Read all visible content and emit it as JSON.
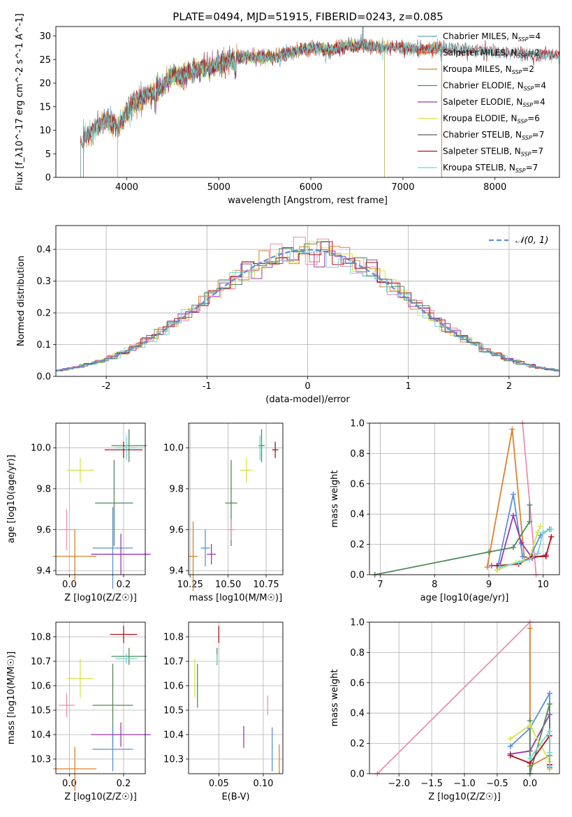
{
  "figure": {
    "title": "PLATE=0494, MJD=51915, FIBERID=0243, z=0.085"
  },
  "chart_data": [
    {
      "type": "line",
      "panel": "spectrum",
      "xlabel": "wavelength [Angstrom, rest frame]",
      "ylabel": "Flux [f_λ10^-17 erg cm^-2 s^-1 A^-1]",
      "xlim": [
        3230,
        8700
      ],
      "ylim": [
        0,
        32
      ],
      "xticks": [
        4000,
        5000,
        6000,
        7000,
        8000
      ],
      "yticks": [
        0,
        5,
        10,
        15,
        20,
        25,
        30
      ],
      "grid": false,
      "legend": "top-right",
      "series": [
        {
          "name": "Chabrier MILES, N_SSP=4",
          "color": "#5fa2c8",
          "range": [
            3530,
            7420
          ]
        },
        {
          "name": "Salpeter MILES, N_SSP=2",
          "color": "#e05a3e",
          "range": [
            3530,
            7420
          ]
        },
        {
          "name": "Kroupa MILES, N_SSP=2",
          "color": "#d9822b",
          "range": [
            3530,
            7420
          ]
        },
        {
          "name": "Chabrier ELODIE, N_SSP=4",
          "color": "#4e8a5a",
          "range": [
            3900,
            6800
          ]
        },
        {
          "name": "Salpeter ELODIE, N_SSP=4",
          "color": "#9a37b5",
          "range": [
            3900,
            6800
          ]
        },
        {
          "name": "Kroupa ELODIE, N_SSP=6",
          "color": "#d6e34a",
          "range": [
            3900,
            6800
          ]
        },
        {
          "name": "Chabrier STELIB, N_SSP=7",
          "color": "#5a5a5a",
          "range": [
            3500,
            8700
          ]
        },
        {
          "name": "Salpeter STELIB, N_SSP=7",
          "color": "#b0101a",
          "range": [
            3500,
            8700
          ]
        },
        {
          "name": "Kroupa STELIB, N_SSP=7",
          "color": "#6fd6d6",
          "range": [
            3500,
            8700
          ]
        }
      ],
      "shape": {
        "x": [
          3500,
          3600,
          3700,
          3800,
          3900,
          4000,
          4100,
          4200,
          4300,
          4400,
          4500,
          4600,
          4700,
          4800,
          4900,
          5000,
          5200,
          5400,
          5600,
          5800,
          6000,
          6200,
          6400,
          6600,
          6800,
          7000,
          7200,
          7400,
          7600,
          7800,
          8000,
          8200,
          8400,
          8700
        ],
        "y": [
          7,
          9.5,
          11,
          12,
          10.5,
          14,
          16,
          17,
          18.5,
          19.5,
          21.5,
          21,
          22.5,
          23,
          23.5,
          24,
          25.5,
          25.5,
          25.5,
          26.5,
          27.5,
          27,
          28,
          28,
          27.5,
          27.5,
          27,
          27.5,
          27,
          27,
          26.5,
          26.5,
          26,
          26
        ]
      }
    },
    {
      "type": "step",
      "panel": "residual-histogram",
      "xlabel": "(data-model)/error",
      "ylabel": "Normed distribution",
      "xlim": [
        -2.5,
        2.5
      ],
      "ylim": [
        0,
        0.475
      ],
      "xticks": [
        -2,
        -1,
        0,
        1,
        2
      ],
      "xtick_labels": [
        "−2",
        "−1",
        "0",
        "1",
        "2"
      ],
      "yticks": [
        0.0,
        0.1,
        0.2,
        0.3,
        0.4
      ],
      "yticklabels": [
        "0.0",
        "0.1",
        "0.2",
        "0.3",
        "0.4"
      ],
      "grid": true,
      "legend": "top-right",
      "reference_curve": {
        "name": "𝒩(0, 1)",
        "color": "#5b8fd6"
      },
      "series_colors": [
        "#d9822b",
        "#9a37b5",
        "#d6e34a",
        "#b0101a",
        "#e98fb5",
        "#6fd6d6",
        "#4e8a5a"
      ]
    },
    {
      "type": "scatter",
      "panel": "age-vs-Z",
      "xlabel": "Z [log10(Z/Z☉)]",
      "ylabel": "age  [log10(age/yr)]",
      "xlim": [
        -0.05,
        0.28
      ],
      "ylim": [
        9.38,
        10.12
      ],
      "xticks": [
        0.0,
        0.2
      ],
      "xticklabels": [
        "0.0",
        "0.2"
      ],
      "yticks": [
        9.4,
        9.6,
        9.8,
        10.0
      ],
      "yticklabels": [
        "9.4",
        "9.6",
        "9.8",
        "10.0"
      ],
      "grid": true,
      "points": [
        {
          "x": 0.22,
          "y": 10.01,
          "xerr": 0.065,
          "yerr": 0.08,
          "color": "#4e8a5a"
        },
        {
          "x": 0.2,
          "y": 9.99,
          "xerr": 0.07,
          "yerr": 0.04,
          "color": "#b0101a"
        },
        {
          "x": 0.21,
          "y": 10.0,
          "xerr": 0.04,
          "yerr": 0.06,
          "color": "#6fd6d6"
        },
        {
          "x": 0.04,
          "y": 9.89,
          "xerr": 0.05,
          "yerr": 0.06,
          "color": "#d6e34a"
        },
        {
          "x": 0.165,
          "y": 9.73,
          "xerr": 0.07,
          "yerr": 0.21,
          "color": "#4e8a5a"
        },
        {
          "x": -0.01,
          "y": 9.6,
          "xerr": 0.03,
          "yerr": 0.1,
          "color": "#e98fb5"
        },
        {
          "x": 0.16,
          "y": 9.51,
          "xerr": 0.075,
          "yerr": 0.2,
          "color": "#5b8fd6"
        },
        {
          "x": 0.19,
          "y": 9.48,
          "xerr": 0.11,
          "yerr": 0.1,
          "color": "#9a37b5"
        },
        {
          "x": 0.02,
          "y": 9.47,
          "xerr": 0.08,
          "yerr": 0.13,
          "color": "#d9822b"
        }
      ]
    },
    {
      "type": "scatter",
      "panel": "age-vs-mass",
      "xlabel": "mass [log10(M/M☉)]",
      "ylabel": "",
      "xlim": [
        10.24,
        10.86
      ],
      "ylim": [
        9.38,
        10.12
      ],
      "xticks": [
        10.25,
        10.5,
        10.75
      ],
      "xticklabels": [
        "10.25",
        "10.50",
        "10.75"
      ],
      "yticks": [
        9.4,
        9.6,
        9.8,
        10.0
      ],
      "yticklabels": [
        "9.4",
        "9.6",
        "9.8",
        "10.0"
      ],
      "grid": true,
      "points": [
        {
          "x": 10.72,
          "y": 10.01,
          "xerr": 0.02,
          "yerr": 0.08,
          "color": "#4e8a5a"
        },
        {
          "x": 10.81,
          "y": 9.99,
          "xerr": 0.02,
          "yerr": 0.04,
          "color": "#b0101a"
        },
        {
          "x": 10.71,
          "y": 10.0,
          "xerr": 0.01,
          "yerr": 0.06,
          "color": "#6fd6d6"
        },
        {
          "x": 10.62,
          "y": 9.89,
          "xerr": 0.04,
          "yerr": 0.06,
          "color": "#d6e34a"
        },
        {
          "x": 10.52,
          "y": 9.73,
          "xerr": 0.04,
          "yerr": 0.21,
          "color": "#4e8a5a"
        },
        {
          "x": 10.52,
          "y": 9.6,
          "xerr": 0.02,
          "yerr": 0.05,
          "color": "#e98fb5"
        },
        {
          "x": 10.35,
          "y": 9.51,
          "xerr": 0.03,
          "yerr": 0.09,
          "color": "#5b8fd6"
        },
        {
          "x": 10.39,
          "y": 9.48,
          "xerr": 0.03,
          "yerr": 0.05,
          "color": "#9a37b5"
        },
        {
          "x": 10.27,
          "y": 9.47,
          "xerr": 0.03,
          "yerr": 0.17,
          "color": "#d9822b"
        }
      ]
    },
    {
      "type": "line",
      "panel": "mass-weight-vs-age",
      "xlabel": "age  [log10(age/yr)]",
      "ylabel": "mass weight",
      "xlim": [
        6.8,
        10.3
      ],
      "ylim": [
        0,
        1
      ],
      "xticks": [
        7,
        8,
        9,
        10
      ],
      "xticklabels": [
        "7",
        "8",
        "9",
        "10"
      ],
      "yticks": [
        0.0,
        0.2,
        0.4,
        0.6,
        0.8,
        1.0
      ],
      "yticklabels": [
        "0.0",
        "0.2",
        "0.4",
        "0.6",
        "0.8",
        "1.0"
      ],
      "grid": true,
      "series": [
        {
          "color": "#d9822b",
          "x": [
            8.97,
            9.43,
            9.65
          ],
          "y": [
            0.05,
            0.96,
            0.12
          ]
        },
        {
          "color": "#e98fb5",
          "x": [
            9.62,
            9.87
          ],
          "y": [
            1.0,
            0.0
          ]
        },
        {
          "color": "#5b8fd6",
          "x": [
            9.15,
            9.45,
            9.62,
            9.75,
            9.95,
            10.12
          ],
          "y": [
            0.03,
            0.53,
            0.12,
            0.11,
            0.26,
            0.3
          ]
        },
        {
          "color": "#9a37b5",
          "x": [
            9.05,
            9.2,
            9.45,
            9.6,
            9.8,
            10.05
          ],
          "y": [
            0.06,
            0.06,
            0.39,
            0.21,
            0.11,
            0.13
          ]
        },
        {
          "color": "#4e8a5a",
          "x": [
            6.9,
            9.0,
            9.45,
            9.75,
            9.75
          ],
          "y": [
            0.0,
            0.15,
            0.18,
            0.35,
            0.46
          ]
        },
        {
          "color": "#d6e34a",
          "x": [
            9.15,
            9.5,
            9.75,
            9.9,
            9.95
          ],
          "y": [
            0.03,
            0.08,
            0.11,
            0.28,
            0.32
          ]
        },
        {
          "color": "#b0101a",
          "x": [
            9.15,
            9.55,
            9.8,
            10.05,
            10.15
          ],
          "y": [
            0.06,
            0.07,
            0.12,
            0.12,
            0.25
          ]
        },
        {
          "color": "#6fd6d6",
          "x": [
            9.2,
            9.55,
            9.75,
            9.9,
            10.0,
            10.15
          ],
          "y": [
            0.05,
            0.08,
            0.1,
            0.14,
            0.28,
            0.3
          ]
        }
      ]
    },
    {
      "type": "scatter",
      "panel": "mass-vs-Z",
      "xlabel": "Z [log10(Z/Z☉)]",
      "ylabel": "mass [log10(M/M☉)]",
      "xlim": [
        -0.05,
        0.28
      ],
      "ylim": [
        10.24,
        10.86
      ],
      "xticks": [
        0.0,
        0.2
      ],
      "xticklabels": [
        "0.0",
        "0.2"
      ],
      "yticks": [
        10.3,
        10.4,
        10.5,
        10.6,
        10.7,
        10.8
      ],
      "yticklabels": [
        "10.3",
        "10.4",
        "10.5",
        "10.6",
        "10.7",
        "10.8"
      ],
      "grid": true,
      "points": [
        {
          "x": 0.2,
          "y": 10.81,
          "xerr": 0.05,
          "yerr": 0.035,
          "color": "#b0101a"
        },
        {
          "x": 0.22,
          "y": 10.72,
          "xerr": 0.065,
          "yerr": 0.035,
          "color": "#4e8a5a"
        },
        {
          "x": 0.21,
          "y": 10.71,
          "xerr": 0.04,
          "yerr": 0.02,
          "color": "#6fd6d6"
        },
        {
          "x": 0.04,
          "y": 10.63,
          "xerr": 0.05,
          "yerr": 0.08,
          "color": "#d6e34a"
        },
        {
          "x": 0.16,
          "y": 10.52,
          "xerr": 0.075,
          "yerr": 0.17,
          "color": "#4e8a5a"
        },
        {
          "x": -0.01,
          "y": 10.52,
          "xerr": 0.03,
          "yerr": 0.05,
          "color": "#e98fb5"
        },
        {
          "x": 0.16,
          "y": 10.34,
          "xerr": 0.075,
          "yerr": 0.09,
          "color": "#5b8fd6"
        },
        {
          "x": 0.19,
          "y": 10.4,
          "xerr": 0.11,
          "yerr": 0.05,
          "color": "#9a37b5"
        },
        {
          "x": 0.02,
          "y": 10.26,
          "xerr": 0.08,
          "yerr": 0.09,
          "color": "#d9822b"
        }
      ]
    },
    {
      "type": "scatter",
      "panel": "mass-vs-EBV",
      "xlabel": "E(B-V)",
      "ylabel": "",
      "xlim": [
        0.016,
        0.122
      ],
      "ylim": [
        10.24,
        10.86
      ],
      "xticks": [
        0.05,
        0.1
      ],
      "xticklabels": [
        "0.05",
        "0.10"
      ],
      "yticks": [
        10.3,
        10.4,
        10.5,
        10.6,
        10.7,
        10.8
      ],
      "yticklabels": [
        "10.3",
        "10.4",
        "10.5",
        "10.6",
        "10.7",
        "10.8"
      ],
      "grid": true,
      "points": [
        {
          "x": 0.05,
          "y": 10.81,
          "xerr": 0.0,
          "yerr": 0.035,
          "color": "#b0101a"
        },
        {
          "x": 0.048,
          "y": 10.72,
          "xerr": 0.0,
          "yerr": 0.035,
          "color": "#4e8a5a"
        },
        {
          "x": 0.048,
          "y": 10.71,
          "xerr": 0.0,
          "yerr": 0.02,
          "color": "#6fd6d6"
        },
        {
          "x": 0.023,
          "y": 10.63,
          "xerr": 0.0,
          "yerr": 0.08,
          "color": "#d6e34a"
        },
        {
          "x": 0.026,
          "y": 10.6,
          "xerr": 0.0,
          "yerr": 0.09,
          "color": "#4e8a5a"
        },
        {
          "x": 0.105,
          "y": 10.52,
          "xerr": 0.0,
          "yerr": 0.04,
          "color": "#e98fb5"
        },
        {
          "x": 0.11,
          "y": 10.34,
          "xerr": 0.0,
          "yerr": 0.09,
          "color": "#5b8fd6"
        },
        {
          "x": 0.078,
          "y": 10.39,
          "xerr": 0.0,
          "yerr": 0.045,
          "color": "#9a37b5"
        },
        {
          "x": 0.118,
          "y": 10.3,
          "xerr": 0.0,
          "yerr": 0.06,
          "color": "#d9822b"
        }
      ]
    },
    {
      "type": "line",
      "panel": "mass-weight-vs-Z",
      "xlabel": "Z [log10(Z/Z☉)]",
      "ylabel": "mass weight",
      "xlim": [
        -2.45,
        0.45
      ],
      "ylim": [
        0,
        1
      ],
      "xticks": [
        -2.0,
        -1.5,
        -1.0,
        -0.5,
        0.0
      ],
      "xticklabels": [
        "−2.0",
        "−1.5",
        "−1.0",
        "−0.5",
        "0.0"
      ],
      "yticks": [
        0.0,
        0.2,
        0.4,
        0.6,
        0.8,
        1.0
      ],
      "yticklabels": [
        "0.0",
        "0.2",
        "0.4",
        "0.6",
        "0.8",
        "1.0"
      ],
      "grid": true,
      "series": [
        {
          "color": "#e98fb5",
          "x": [
            -2.33,
            0.0,
            0.0
          ],
          "y": [
            0.0,
            1.0,
            0.0
          ]
        },
        {
          "color": "#d9822b",
          "x": [
            0.0,
            0.0,
            0.3,
            0.3
          ],
          "y": [
            0.96,
            0.05,
            0.12,
            0.03
          ]
        },
        {
          "color": "#5b8fd6",
          "x": [
            -0.3,
            0.0,
            0.3,
            0.3,
            0.3
          ],
          "y": [
            0.18,
            0.3,
            0.53,
            0.12,
            0.03
          ]
        },
        {
          "color": "#9a37b5",
          "x": [
            -0.3,
            0.0,
            0.3,
            0.3
          ],
          "y": [
            0.13,
            0.15,
            0.39,
            0.06
          ]
        },
        {
          "color": "#4e8a5a",
          "x": [
            0.0,
            0.0,
            0.3,
            0.3
          ],
          "y": [
            0.35,
            0.0,
            0.46,
            0.04
          ]
        },
        {
          "color": "#d6e34a",
          "x": [
            -0.3,
            0.0,
            0.3,
            0.3
          ],
          "y": [
            0.23,
            0.32,
            0.08,
            0.03
          ]
        },
        {
          "color": "#b0101a",
          "x": [
            -0.3,
            0.0,
            0.3,
            0.3
          ],
          "y": [
            0.12,
            0.07,
            0.25,
            0.06
          ]
        },
        {
          "color": "#6fd6d6",
          "x": [
            0.0,
            0.3,
            0.3,
            0.3
          ],
          "y": [
            0.1,
            0.28,
            0.14,
            0.05
          ]
        }
      ]
    }
  ]
}
